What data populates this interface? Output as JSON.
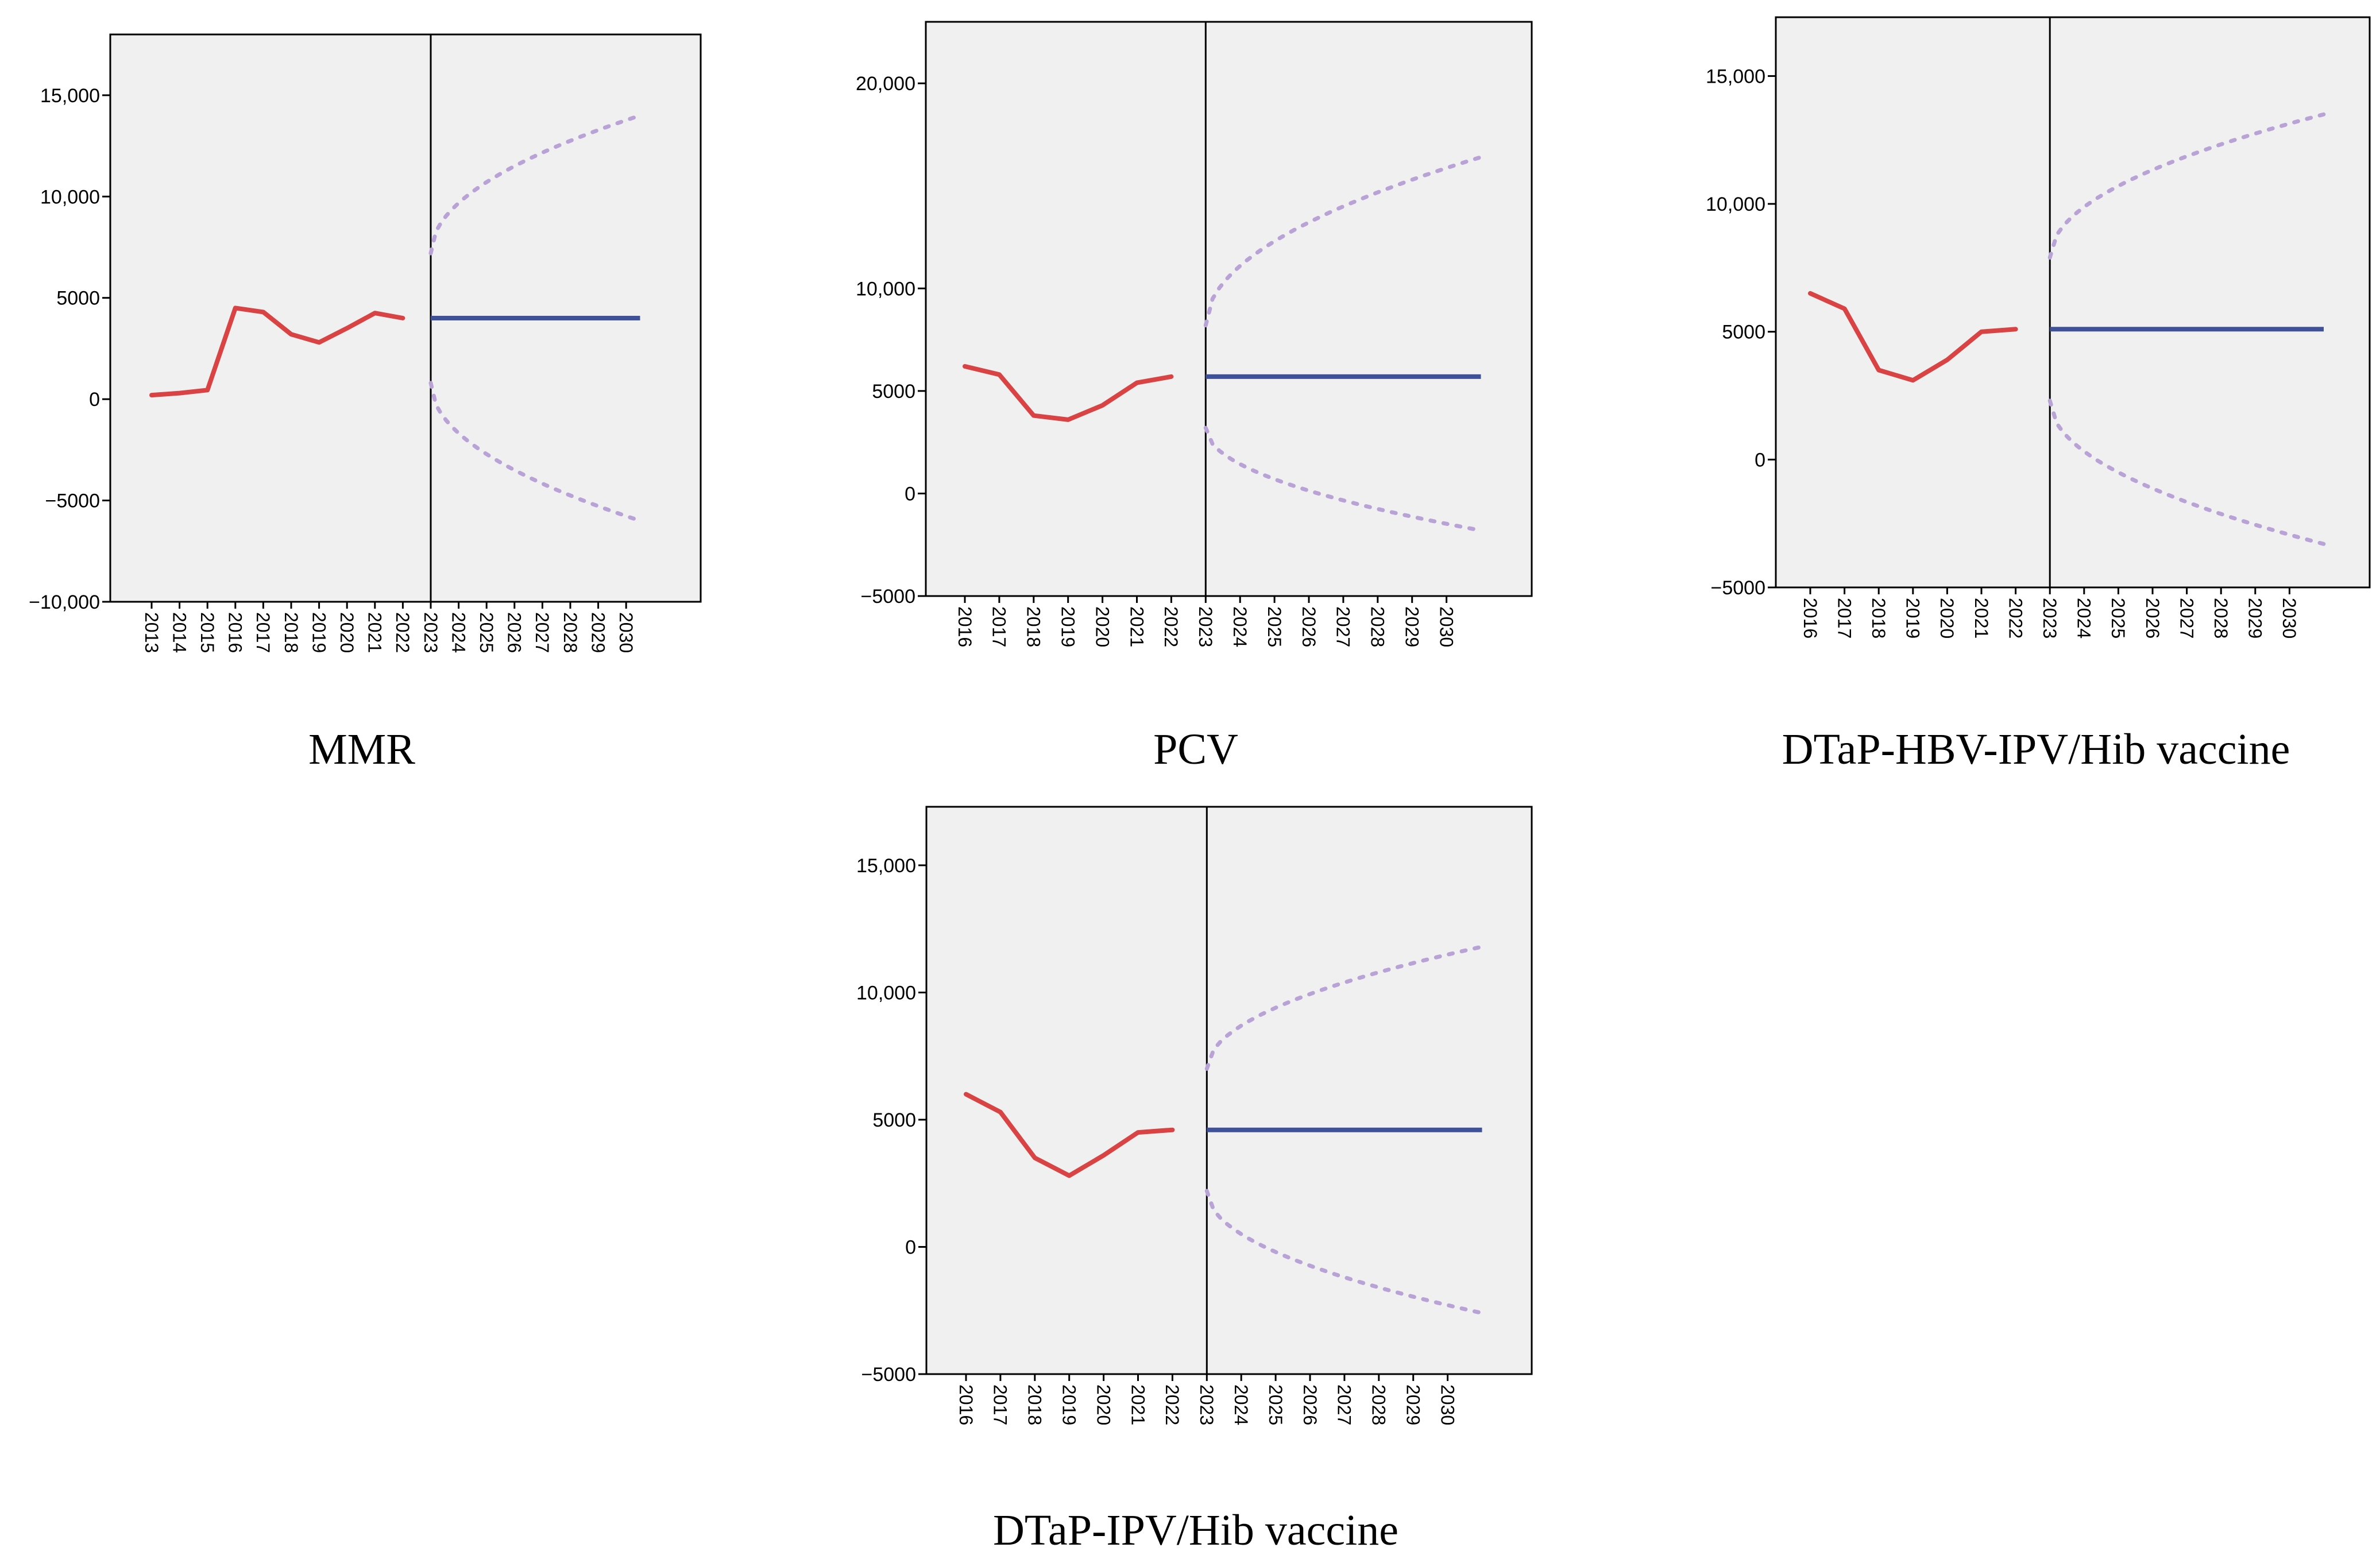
{
  "colors": {
    "observed": "#d94343",
    "forecast": "#3f5199",
    "ci": "#b9a3d6",
    "background": "#f0f0f0"
  },
  "chart_data": [
    {
      "type": "line",
      "title": "MMR",
      "xlabel": "",
      "ylabel": "",
      "categories": [
        "2013",
        "2014",
        "2015",
        "2016",
        "2017",
        "2018",
        "2019",
        "2020",
        "2021",
        "2022",
        "2023",
        "2024",
        "2025",
        "2026",
        "2027",
        "2028",
        "2029",
        "2030"
      ],
      "ylim": [
        -10000,
        18000
      ],
      "yticks": [
        -10000,
        -5000,
        0,
        5000,
        10000,
        15000
      ],
      "ytick_labels": [
        "−10,000",
        "−5000",
        "0",
        "5000",
        "10,000",
        "15,000"
      ],
      "divider_at": "2023",
      "series": [
        {
          "name": "observed",
          "x": [
            "2013",
            "2014",
            "2015",
            "2016",
            "2017",
            "2018",
            "2019",
            "2020",
            "2021",
            "2022"
          ],
          "values": [
            200,
            300,
            450,
            4500,
            4300,
            3200,
            2800,
            3500,
            4250,
            4000
          ]
        },
        {
          "name": "forecast",
          "x": [
            "2023",
            "2030.5"
          ],
          "values": [
            4000,
            4000
          ]
        },
        {
          "name": "upper_ci",
          "x": [
            "2023",
            "2030.5"
          ],
          "values": [
            7200,
            14000
          ],
          "curve": "sqrt"
        },
        {
          "name": "lower_ci",
          "x": [
            "2023",
            "2030.5"
          ],
          "values": [
            800,
            -6000
          ],
          "curve": "sqrt"
        }
      ]
    },
    {
      "type": "line",
      "title": "PCV",
      "xlabel": "",
      "ylabel": "",
      "categories": [
        "2016",
        "2017",
        "2018",
        "2019",
        "2020",
        "2021",
        "2022",
        "2023",
        "2024",
        "2025",
        "2026",
        "2027",
        "2028",
        "2029",
        "2030"
      ],
      "ylim": [
        -5000,
        23000
      ],
      "yticks": [
        -5000,
        0,
        5000,
        10000,
        20000
      ],
      "ytick_labels": [
        "−5000",
        "0",
        "5000",
        "10,000",
        "20,000"
      ],
      "divider_at": "2023",
      "series": [
        {
          "name": "observed",
          "x": [
            "2016",
            "2017",
            "2018",
            "2019",
            "2020",
            "2021",
            "2022"
          ],
          "values": [
            6200,
            5800,
            3800,
            3600,
            4300,
            5400,
            5700
          ]
        },
        {
          "name": "forecast",
          "x": [
            "2023",
            "2031"
          ],
          "values": [
            5700,
            5700
          ]
        },
        {
          "name": "upper_ci",
          "x": [
            "2023",
            "2031"
          ],
          "values": [
            8200,
            16400
          ],
          "curve": "sqrt"
        },
        {
          "name": "lower_ci",
          "x": [
            "2023",
            "2031"
          ],
          "values": [
            3200,
            -1800
          ],
          "curve": "sqrt"
        }
      ]
    },
    {
      "type": "line",
      "title": "DTaP-HBV-IPV/Hib vaccine",
      "xlabel": "",
      "ylabel": "",
      "categories": [
        "2016",
        "2017",
        "2018",
        "2019",
        "2020",
        "2021",
        "2022",
        "2023",
        "2024",
        "2025",
        "2026",
        "2027",
        "2028",
        "2029",
        "2030"
      ],
      "ylim": [
        -5000,
        17300
      ],
      "yticks": [
        -5000,
        0,
        5000,
        10000,
        15000
      ],
      "ytick_labels": [
        "−5000",
        "0",
        "5000",
        "10,000",
        "15,000"
      ],
      "divider_at": "2023",
      "series": [
        {
          "name": "observed",
          "x": [
            "2016",
            "2017",
            "2018",
            "2019",
            "2020",
            "2021",
            "2022"
          ],
          "values": [
            6500,
            5900,
            3500,
            3100,
            3900,
            5000,
            5100
          ]
        },
        {
          "name": "forecast",
          "x": [
            "2023",
            "2031"
          ],
          "values": [
            5100,
            5100
          ]
        },
        {
          "name": "upper_ci",
          "x": [
            "2023",
            "2031"
          ],
          "values": [
            7900,
            13500
          ],
          "curve": "sqrt"
        },
        {
          "name": "lower_ci",
          "x": [
            "2023",
            "2031"
          ],
          "values": [
            2300,
            -3300
          ],
          "curve": "sqrt"
        }
      ]
    },
    {
      "type": "line",
      "title": "DTaP-IPV/Hib vaccine",
      "xlabel": "",
      "ylabel": "",
      "categories": [
        "2016",
        "2017",
        "2018",
        "2019",
        "2020",
        "2021",
        "2022",
        "2023",
        "2024",
        "2025",
        "2026",
        "2027",
        "2028",
        "2029",
        "2030"
      ],
      "ylim": [
        -5000,
        17300
      ],
      "yticks": [
        -5000,
        0,
        5000,
        10000,
        15000
      ],
      "ytick_labels": [
        "−5000",
        "0",
        "5000",
        "10,000",
        "15,000"
      ],
      "divider_at": "2023",
      "series": [
        {
          "name": "observed",
          "x": [
            "2016",
            "2017",
            "2018",
            "2019",
            "2020",
            "2021",
            "2022"
          ],
          "values": [
            6000,
            5300,
            3500,
            2800,
            3600,
            4500,
            4600
          ]
        },
        {
          "name": "forecast",
          "x": [
            "2023",
            "2031"
          ],
          "values": [
            4600,
            4600
          ]
        },
        {
          "name": "upper_ci",
          "x": [
            "2023",
            "2031"
          ],
          "values": [
            7000,
            11800
          ],
          "curve": "sqrt"
        },
        {
          "name": "lower_ci",
          "x": [
            "2023",
            "2031"
          ],
          "values": [
            2200,
            -2600
          ],
          "curve": "sqrt"
        }
      ]
    }
  ]
}
